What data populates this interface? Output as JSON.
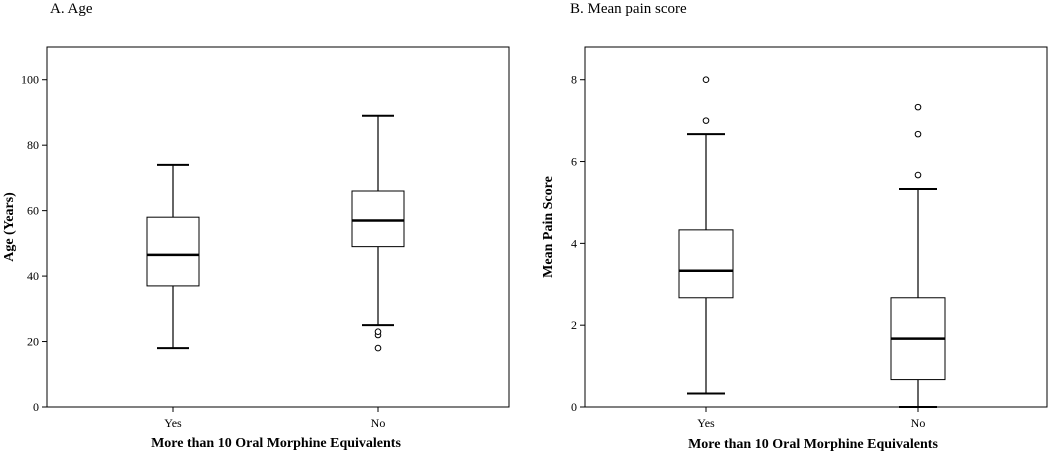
{
  "chart_data": [
    {
      "type": "box",
      "title": "A. Age",
      "xlabel": "More than 10 Oral Morphine Equivalents",
      "ylabel": "Age (Years)",
      "ylim": [
        0,
        110
      ],
      "yticks": [
        0,
        20,
        40,
        60,
        80,
        100
      ],
      "grid": false,
      "categories": [
        "Yes",
        "No"
      ],
      "boxes": [
        {
          "category": "Yes",
          "whisker_low": 18,
          "q1": 37,
          "median": 46.5,
          "q3": 58,
          "whisker_high": 74,
          "outliers": []
        },
        {
          "category": "No",
          "whisker_low": 25,
          "q1": 49,
          "median": 57,
          "q3": 66,
          "whisker_high": 89,
          "outliers": [
            18,
            22,
            23
          ]
        }
      ]
    },
    {
      "type": "box",
      "title": "B. Mean pain score",
      "xlabel": "More than 10 Oral Morphine Equivalents",
      "ylabel": "Mean Pain Score",
      "ylim": [
        0,
        8.8
      ],
      "yticks": [
        0,
        2,
        4,
        6,
        8
      ],
      "grid": false,
      "categories": [
        "Yes",
        "No"
      ],
      "boxes": [
        {
          "category": "Yes",
          "whisker_low": 0.33,
          "q1": 2.67,
          "median": 3.33,
          "q3": 4.33,
          "whisker_high": 6.67,
          "outliers": [
            7.0,
            8.0
          ]
        },
        {
          "category": "No",
          "whisker_low": 0,
          "q1": 0.67,
          "median": 1.67,
          "q3": 2.67,
          "whisker_high": 5.33,
          "outliers": [
            5.67,
            6.67,
            7.33
          ]
        }
      ]
    }
  ]
}
